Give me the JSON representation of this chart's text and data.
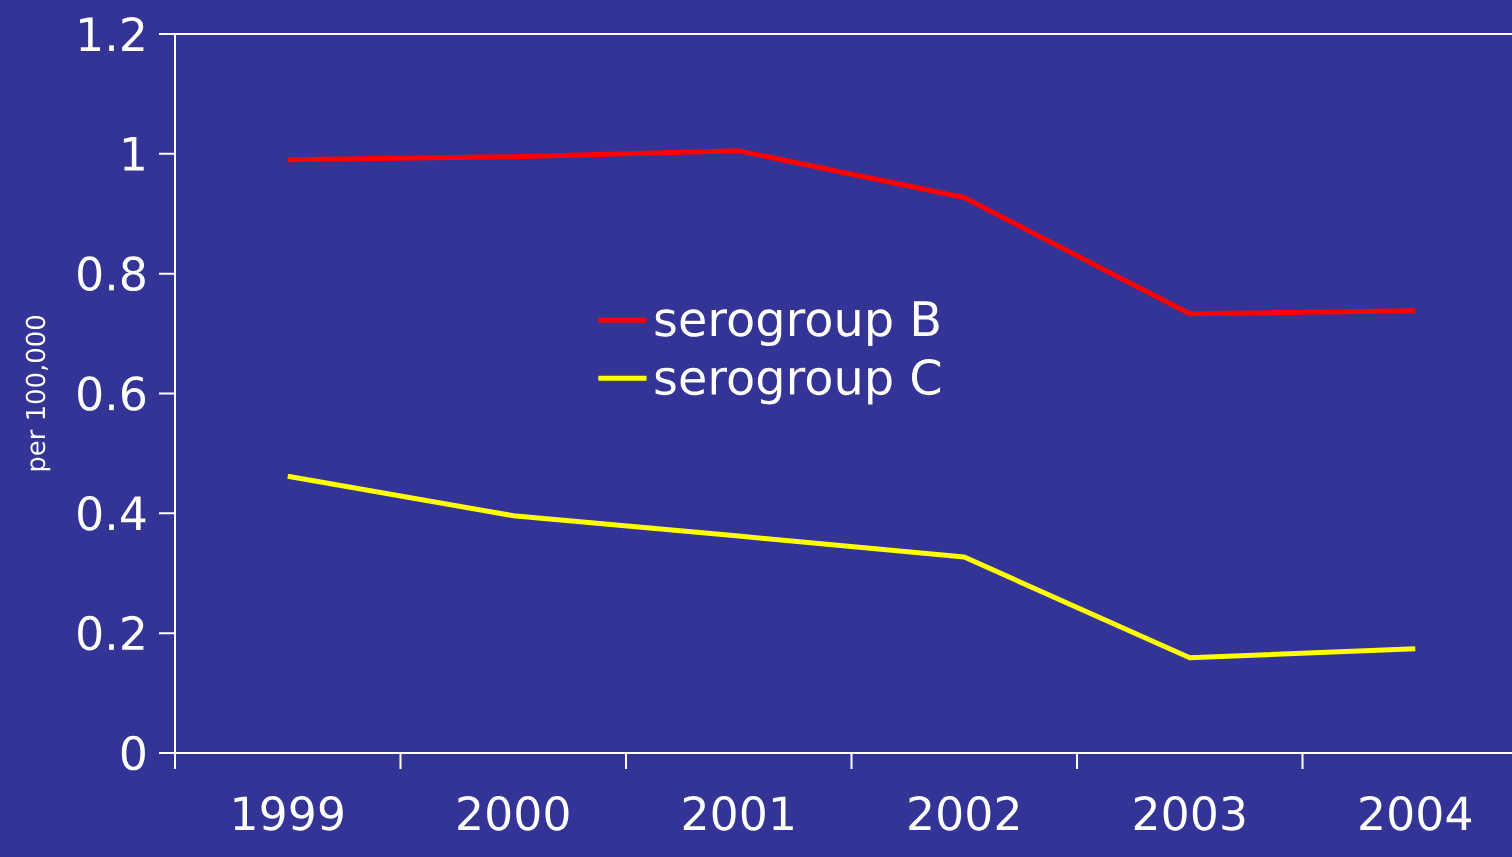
{
  "chart_data": {
    "type": "line",
    "ylabel": "per 100,000",
    "categories": [
      "1999",
      "2000",
      "2001",
      "2002",
      "2003",
      "2004"
    ],
    "series": [
      {
        "name": "serogroup B",
        "color": "#ff0000",
        "values": [
          0.99,
          0.995,
          1.005,
          0.927,
          0.733,
          0.738
        ]
      },
      {
        "name": "serogroup C",
        "color": "#ffff00",
        "values": [
          0.462,
          0.396,
          0.362,
          0.327,
          0.159,
          0.174
        ]
      }
    ],
    "ylim": [
      0,
      1.2
    ],
    "yticks": [
      0,
      0.2,
      0.4,
      0.6,
      0.8,
      1,
      1.2
    ],
    "legend": "center",
    "marker": "none",
    "line_style": "solid",
    "grid": false
  }
}
